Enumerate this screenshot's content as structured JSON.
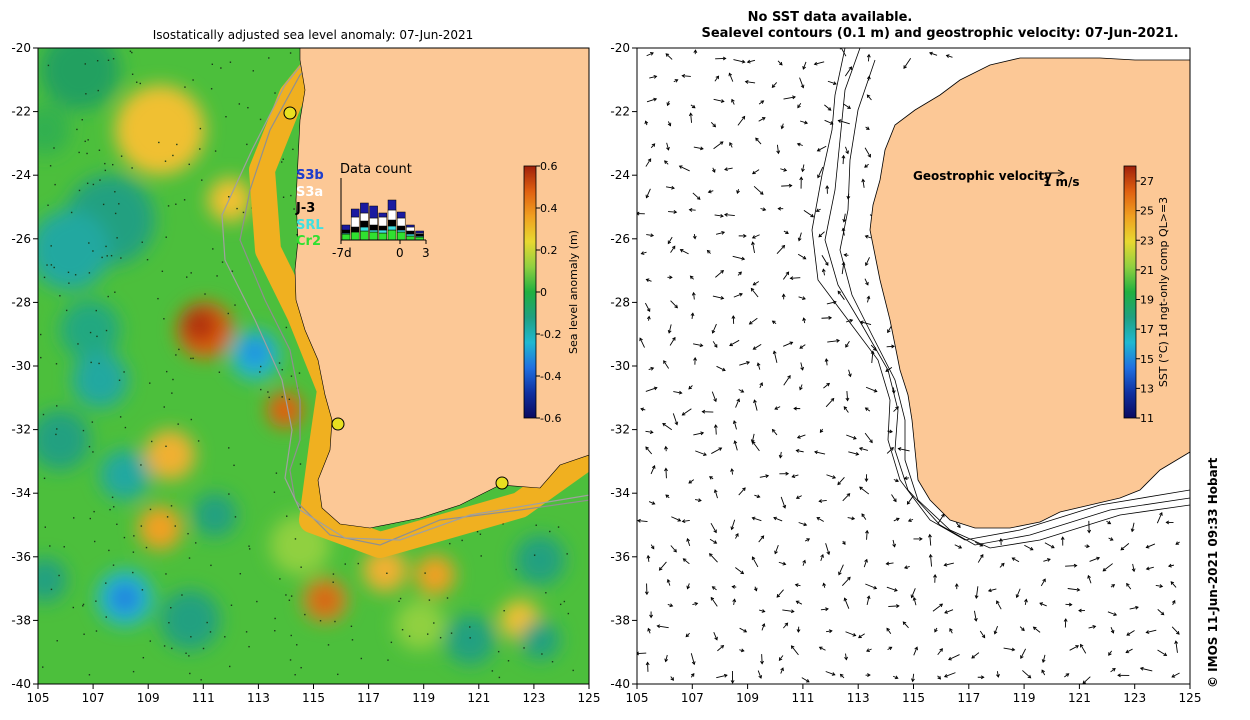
{
  "left_map": {
    "title": "Isostatically adjusted sea level anomaly: 07-Jun-2021",
    "x_ticks": [
      "105",
      "107",
      "109",
      "111",
      "113",
      "115",
      "117",
      "119",
      "121",
      "123",
      "125"
    ],
    "y_ticks": [
      "-20",
      "-22",
      "-24",
      "-26",
      "-28",
      "-30",
      "-32",
      "-34",
      "-36",
      "-38",
      "-40"
    ],
    "colorbar": {
      "label": "Sea level anomaly (m)",
      "ticks": [
        "0.6",
        "0.4",
        "0.2",
        "0",
        "-0.2",
        "-0.4",
        "-0.6"
      ],
      "colors": [
        "#a0200a",
        "#e06010",
        "#f0a020",
        "#e8d830",
        "#90d040",
        "#20b040",
        "#20a080",
        "#20b8d0",
        "#2070e0",
        "#1030a0",
        "#0a0a60"
      ]
    },
    "data_count": {
      "title": "Data count",
      "missions": [
        {
          "name": "S3b",
          "color": "#1a1aa0"
        },
        {
          "name": "S3a",
          "color": "#ffffff"
        },
        {
          "name": "J-3",
          "color": "#000000"
        },
        {
          "name": "SRL",
          "color": "#40e0e0"
        },
        {
          "name": "Cr2",
          "color": "#30e030"
        }
      ],
      "overlap_label": "S3b",
      "x_labels": [
        "-7d",
        "0",
        "3"
      ]
    },
    "land_color": "#fcc896",
    "markers": [
      "tide-gauge-1",
      "tide-gauge-2",
      "tide-gauge-3"
    ]
  },
  "right_map": {
    "title_line1": "No SST data available.",
    "title_line2": "Sealevel contours (0.1 m) and geostrophic velocity: 07-Jun-2021.",
    "x_ticks": [
      "105",
      "107",
      "109",
      "111",
      "113",
      "115",
      "117",
      "119",
      "121",
      "123",
      "125"
    ],
    "y_ticks": [
      "-20",
      "-22",
      "-24",
      "-26",
      "-28",
      "-30",
      "-32",
      "-34",
      "-36",
      "-38",
      "-40"
    ],
    "velocity_label": "Geostrophic velocity",
    "velocity_scale": "1 m/s",
    "colorbar": {
      "label": "SST (°C) 1d ngt-only comp QL>=3",
      "ticks": [
        "27",
        "25",
        "23",
        "21",
        "19",
        "17",
        "15",
        "13",
        "11"
      ],
      "colors": [
        "#a0200a",
        "#e06010",
        "#f0a020",
        "#e8d830",
        "#90d040",
        "#20b040",
        "#20a080",
        "#20b8d0",
        "#2070e0",
        "#1030a0",
        "#0a0a60"
      ]
    },
    "land_color": "#fcc896"
  },
  "credit": "© IMOS 11-Jun-2021 09:33 Hobart"
}
